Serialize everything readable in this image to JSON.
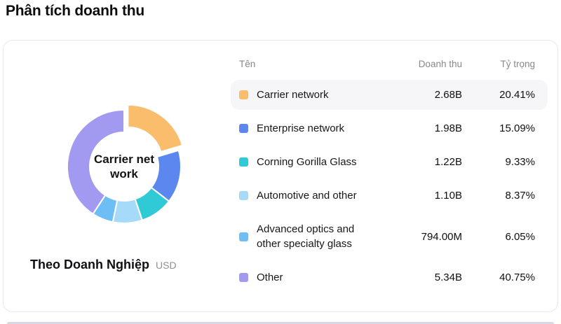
{
  "page": {
    "title": "Phân tích doanh thu"
  },
  "card": {
    "chart": {
      "center_label": "Carrier net\nwork",
      "footer_label": "Theo Doanh Nghiệp",
      "footer_unit": "USD"
    },
    "table": {
      "headers": {
        "name": "Tên",
        "revenue": "Doanh thu",
        "share": "Tỷ trọng"
      },
      "rows": [
        {
          "name": "Carrier network",
          "revenue": "2.68B",
          "share": "20.41%",
          "color": "#f9bd6b",
          "highlighted": true
        },
        {
          "name": "Enterprise network",
          "revenue": "1.98B",
          "share": "15.09%",
          "color": "#5b87ee",
          "highlighted": false
        },
        {
          "name": "Corning Gorilla Glass",
          "revenue": "1.22B",
          "share": "9.33%",
          "color": "#30c9d6",
          "highlighted": false
        },
        {
          "name": "Automotive and other",
          "revenue": "1.10B",
          "share": "8.37%",
          "color": "#a6daf9",
          "highlighted": false
        },
        {
          "name": "Advanced optics and\nother specialty glass",
          "revenue": "794.00M",
          "share": "6.05%",
          "color": "#6dbef5",
          "highlighted": false
        },
        {
          "name": "Other",
          "revenue": "5.34B",
          "share": "40.75%",
          "color": "#a29af0",
          "highlighted": false
        }
      ]
    }
  },
  "chart_data": {
    "type": "pie",
    "donut": true,
    "title": "Theo Doanh Nghiệp",
    "unit": "USD",
    "categories": [
      "Carrier network",
      "Enterprise network",
      "Corning Gorilla Glass",
      "Automotive and other",
      "Advanced optics and other specialty glass",
      "Other"
    ],
    "values_percent": [
      20.41,
      15.09,
      9.33,
      8.37,
      6.05,
      40.75
    ],
    "values_revenue": [
      "2.68B",
      "1.98B",
      "1.22B",
      "1.10B",
      "794.00M",
      "5.34B"
    ],
    "colors": [
      "#f9bd6b",
      "#5b87ee",
      "#30c9d6",
      "#a6daf9",
      "#6dbef5",
      "#a29af0"
    ],
    "selected_slice": "Carrier network",
    "center_label": "Carrier network",
    "start_angle_deg": 0,
    "direction": "clockwise",
    "legend_position": "right-table"
  }
}
